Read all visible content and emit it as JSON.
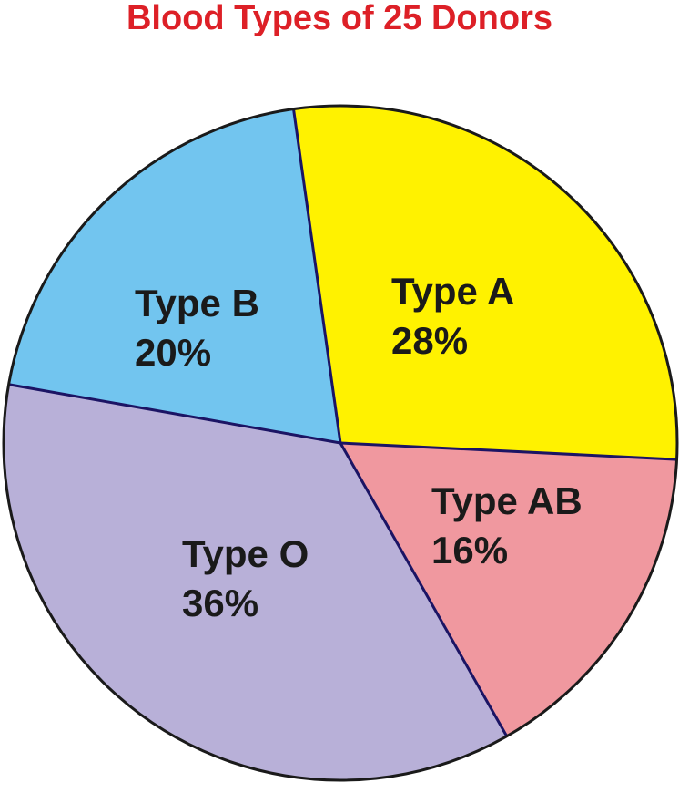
{
  "chart_data": {
    "type": "pie",
    "title": "Blood Types of 25 Donors",
    "slices": [
      {
        "label": "Type A",
        "value": 28,
        "display": "28%",
        "color": "#FFF200"
      },
      {
        "label": "Type AB",
        "value": 16,
        "display": "16%",
        "color": "#F0989F"
      },
      {
        "label": "Type O",
        "value": 36,
        "display": "36%",
        "color": "#B8B0D8"
      },
      {
        "label": "Type B",
        "value": 20,
        "display": "20%",
        "color": "#72C5EF"
      }
    ],
    "start_angle_deg": -98,
    "direction": "clockwise",
    "legend": "none"
  },
  "colors": {
    "title": "#DD2027",
    "outline": "#1a1a1a",
    "divider": "#1b1464"
  }
}
